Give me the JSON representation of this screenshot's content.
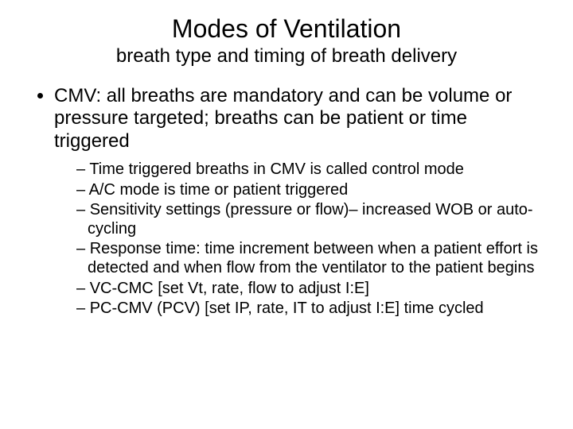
{
  "background_color": "#ffffff",
  "text_color": "#000000",
  "font_family": "Arial",
  "title": "Modes of Ventilation",
  "title_fontsize": 32,
  "subtitle": "breath type and timing of breath delivery",
  "subtitle_fontsize": 24,
  "bullets": {
    "level1_fontsize": 24,
    "level2_fontsize": 20,
    "main": "CMV: all breaths are mandatory and can be volume or pressure targeted; breaths can be patient or time triggered",
    "sub": [
      "Time triggered breaths in CMV is called control mode",
      "A/C mode is time or patient triggered",
      "Sensitivity settings (pressure or flow)– increased WOB or auto-cycling",
      "Response time:  time increment between when a patient effort is detected and when flow from the ventilator to the patient begins",
      "VC-CMC [set Vt, rate, flow to adjust I:E]",
      "PC-CMV (PCV) [set IP, rate, IT to adjust I:E] time cycled"
    ]
  }
}
